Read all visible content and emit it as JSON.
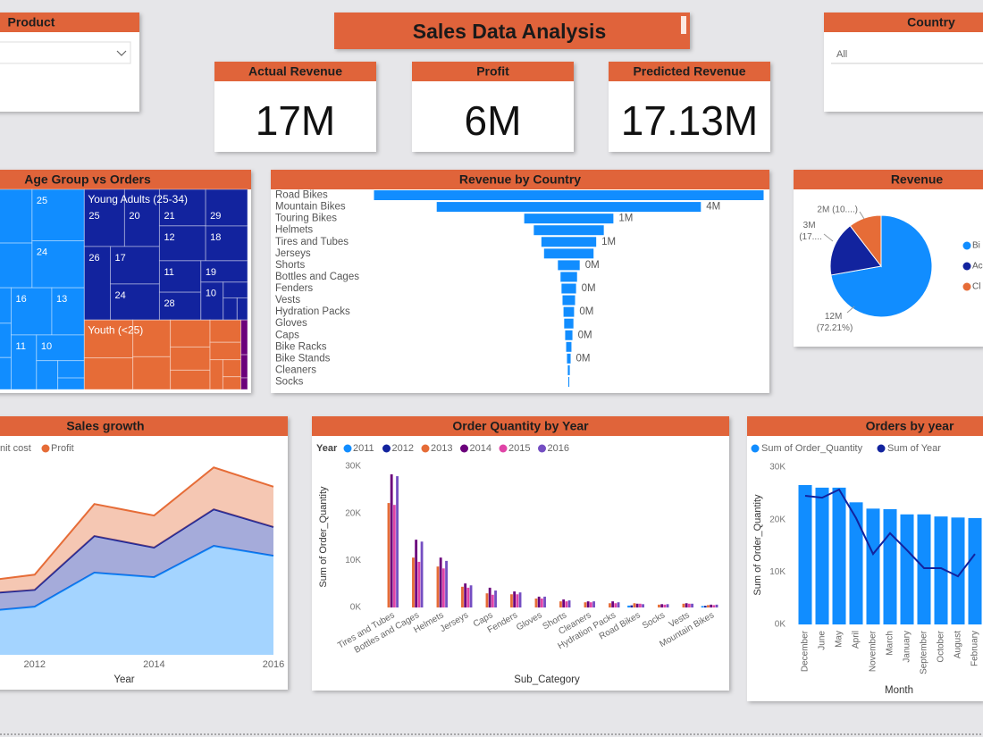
{
  "header": {
    "title": "Sales Data Analysis"
  },
  "slicers": [
    {
      "title": "Product"
    },
    {
      "title": "Country",
      "value": "All"
    }
  ],
  "cards": [
    {
      "title": "Actual Revenue",
      "value": "17M"
    },
    {
      "title": "Profit",
      "value": "6M"
    },
    {
      "title": "Predicted Revenue",
      "value": "17.13M"
    }
  ],
  "chart_data": [
    {
      "type": "treemap",
      "title": "Age Group vs Orders",
      "groups": [
        {
          "name": null,
          "color": "#118dff",
          "labels": [
            null,
            null,
            25,
            24,
            28,
            30,
            18,
            16,
            13,
            11,
            10,
            null,
            null,
            null
          ],
          "values": [
            6000,
            5000,
            3500,
            3200,
            3000,
            2900,
            2700,
            2500,
            2000,
            1800,
            1600,
            800,
            600,
            400
          ]
        },
        {
          "name": "Young Adults (25-34)",
          "color": "#12239e",
          "labels": [
            25,
            20,
            26,
            17,
            24,
            21,
            12,
            29,
            18,
            11,
            28,
            19,
            10,
            null,
            null,
            null
          ],
          "values": [
            3000,
            2600,
            2500,
            2400,
            2300,
            2200,
            2100,
            2000,
            1900,
            1700,
            1500,
            1300,
            1100,
            500,
            400,
            300
          ]
        },
        {
          "name": "Youth (<25)",
          "color": "#e66c37",
          "labels": [
            null,
            null,
            null,
            null,
            null,
            null,
            null,
            null,
            null,
            null,
            null,
            null
          ],
          "values": [
            2400,
            2000,
            1800,
            1600,
            1400,
            1200,
            1000,
            900,
            700,
            500,
            400,
            300
          ]
        },
        {
          "name": null,
          "color": "#6b007b",
          "labels": [
            null,
            null,
            null
          ],
          "values": [
            300,
            200,
            100
          ]
        }
      ]
    },
    {
      "type": "funnel",
      "title": "Revenue by Country",
      "color": "#118dff",
      "categories": [
        "Road Bikes",
        "Mountain Bikes",
        "Touring Bikes",
        "Helmets",
        "Tires and Tubes",
        "Jerseys",
        "Shorts",
        "Bottles and Cages",
        "Fenders",
        "Vests",
        "Hydration Packs",
        "Gloves",
        "Caps",
        "Bike Racks",
        "Bike Stands",
        "Cleaners",
        "Socks"
      ],
      "values": [
        5900000,
        4000000,
        1350000,
        1060000,
        830000,
        750000,
        330000,
        250000,
        220000,
        190000,
        160000,
        140000,
        110000,
        80000,
        55000,
        30000,
        15000
      ],
      "value_labels": [
        null,
        "4M",
        "1M",
        null,
        "1M",
        null,
        "0M",
        null,
        "0M",
        null,
        "0M",
        null,
        "0M",
        null,
        "0M",
        null,
        null
      ]
    },
    {
      "type": "pie",
      "title": "Revenue",
      "categories": [
        "Bi",
        "Ac",
        "Cl"
      ],
      "values": [
        12283000,
        2957000,
        1770000
      ],
      "value_labels": [
        "12M (72.21%)",
        "3M (17....",
        "2M (10....)"
      ],
      "colors": [
        "#118dff",
        "#12239e",
        "#e66c37"
      ]
    },
    {
      "type": "area",
      "title": "Sales growth",
      "x_label": "Year",
      "x": [
        2011,
        2012,
        2013,
        2014,
        2015,
        2016
      ],
      "xlim": [
        2011,
        2016
      ],
      "xticks": [
        2012,
        2014,
        2016
      ],
      "ylim": [
        0,
        5000000
      ],
      "stacked": true,
      "series": [
        {
          "name": null,
          "color": "#118dff",
          "values": [
            1040000,
            1170000,
            2000000,
            1890000,
            2650000,
            2410000
          ]
        },
        {
          "name": "nit cost",
          "color": "#12239e",
          "values": [
            430000,
            410000,
            890000,
            720000,
            890000,
            700000
          ]
        },
        {
          "name": "Profit",
          "color": "#e66c37",
          "values": [
            300000,
            370000,
            780000,
            780000,
            1020000,
            980000
          ]
        }
      ]
    },
    {
      "type": "bar",
      "title": "Order Quantity by Year",
      "x_label": "Sub_Category",
      "y_label": "Sum of Order_Quantity",
      "legend_title": "Year",
      "categories": [
        "Tires and Tubes",
        "Bottles and Cages",
        "Helmets",
        "Jerseys",
        "Caps",
        "Fenders",
        "Gloves",
        "Shorts",
        "Cleaners",
        "Hydration Packs",
        "Road Bikes",
        "Socks",
        "Vests",
        "Mountain Bikes"
      ],
      "ylim": [
        0,
        30000
      ],
      "yticks": [
        {
          "value": 0,
          "label": "0K"
        },
        {
          "value": 10000,
          "label": "10K"
        },
        {
          "value": 20000,
          "label": "20K"
        },
        {
          "value": 30000,
          "label": "30K"
        }
      ],
      "series": [
        {
          "name": "2011",
          "color": "#118dff",
          "values": [
            null,
            null,
            null,
            null,
            null,
            null,
            null,
            null,
            null,
            null,
            400,
            null,
            null,
            300
          ]
        },
        {
          "name": "2012",
          "color": "#12239e",
          "values": [
            null,
            null,
            null,
            null,
            null,
            null,
            null,
            null,
            null,
            null,
            450,
            null,
            null,
            350
          ]
        },
        {
          "name": "2013",
          "color": "#e66c37",
          "values": [
            22200,
            10600,
            8700,
            4400,
            3000,
            2800,
            1900,
            1300,
            1100,
            900,
            900,
            600,
            800,
            500
          ]
        },
        {
          "name": "2014",
          "color": "#6b007b",
          "values": [
            28300,
            14400,
            10600,
            5100,
            4200,
            3400,
            2300,
            1700,
            1300,
            1300,
            800,
            700,
            900,
            600
          ]
        },
        {
          "name": "2015",
          "color": "#e044a7",
          "values": [
            21800,
            9700,
            8300,
            4200,
            2700,
            2800,
            1900,
            1300,
            1100,
            900,
            800,
            600,
            800,
            500
          ]
        },
        {
          "name": "2016",
          "color": "#744ec2",
          "values": [
            27900,
            14000,
            9900,
            4700,
            3600,
            3200,
            2300,
            1500,
            1300,
            1100,
            700,
            700,
            800,
            600
          ]
        }
      ]
    },
    {
      "type": "combo",
      "title": "Orders by year",
      "x_label": "Month",
      "y_label": "Sum of Order_Quantity",
      "categories": [
        "December",
        "June",
        "May",
        "April",
        "November",
        "March",
        "January",
        "September",
        "October",
        "August",
        "February"
      ],
      "ylim": [
        0,
        30000
      ],
      "yticks": [
        {
          "value": 0,
          "label": "0K"
        },
        {
          "value": 10000,
          "label": "10K"
        },
        {
          "value": 20000,
          "label": "20K"
        },
        {
          "value": 30000,
          "label": "30K"
        }
      ],
      "y2lim": [
        0,
        50000000
      ],
      "series": [
        {
          "name": "Sum of Order_Quantity",
          "type": "bar",
          "color": "#118dff",
          "values": [
            26600,
            26100,
            26100,
            23300,
            22100,
            22000,
            21000,
            21000,
            20600,
            20400,
            20300
          ]
        },
        {
          "name": "Sum of Year",
          "type": "line",
          "axis": "y2",
          "color": "#12239e",
          "values": [
            40900000,
            40300000,
            42900000,
            33800000,
            22400000,
            29000000,
            23600000,
            17900000,
            17900000,
            15300000,
            22400000
          ]
        }
      ]
    }
  ]
}
